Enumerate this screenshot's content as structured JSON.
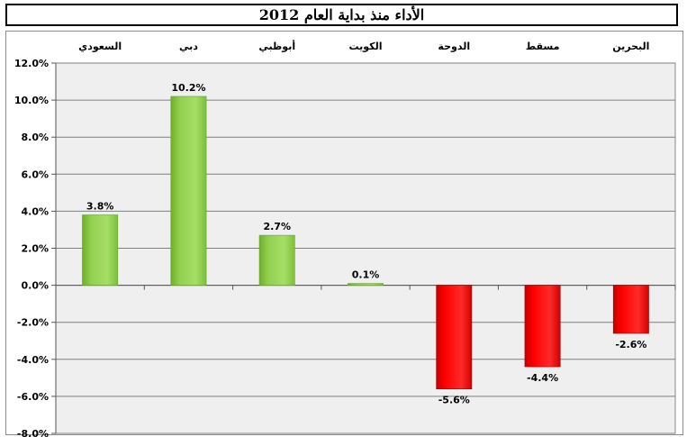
{
  "chart_data": {
    "type": "bar",
    "title": "الأداء منذ بداية العام 2012",
    "categories": [
      "السعودي",
      "دبي",
      "أبوظبي",
      "الكويت",
      "الدوحة",
      "مسقط",
      "البحرين"
    ],
    "series": [
      {
        "values": [
          3.8,
          10.2,
          2.7,
          0.1,
          -5.6,
          -4.4,
          -2.6
        ]
      }
    ],
    "data_labels": [
      "3.8%",
      "10.2%",
      "2.7%",
      "0.1%",
      "-5.6%",
      "-4.4%",
      "-2.6%"
    ],
    "ylim": [
      -8,
      12
    ],
    "ystep": 2,
    "ytick_labels": [
      "12.0%",
      "10.0%",
      "8.0%",
      "6.0%",
      "4.0%",
      "2.0%",
      "0.0%",
      "-2.0%",
      "-4.0%",
      "-6.0%",
      "-8.0%"
    ],
    "xlabel": "",
    "ylabel": "",
    "grid": true,
    "legend": "none",
    "colors": {
      "positive": "#92d050",
      "negative": "#ff0000",
      "plot_background": "#efefef",
      "grid": "#7f7f7f"
    }
  }
}
